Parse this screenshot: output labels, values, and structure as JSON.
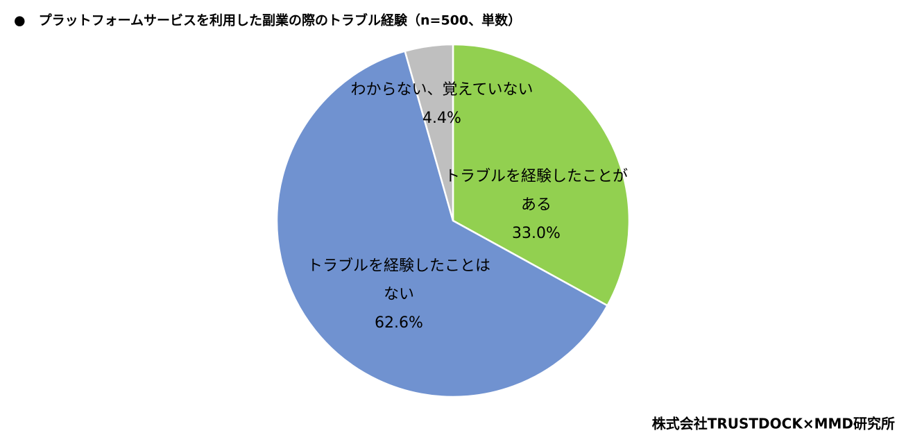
{
  "chart_data": {
    "type": "pie",
    "title": "●　プラットフォームサービスを利用した副業の際のトラブル経験（n=500、単数）",
    "categories": [
      "トラブルを経験したことがある",
      "トラブルを経験したことはない",
      "わからない、覚えていない"
    ],
    "values": [
      33.0,
      62.6,
      4.4
    ],
    "value_labels": [
      "33.0%",
      "62.6%",
      "4.4%"
    ],
    "colors": [
      "#92d050",
      "#7092d0",
      "#bfbfbf"
    ],
    "source": "株式会社TRUSTDOCK×MMD研究所"
  }
}
